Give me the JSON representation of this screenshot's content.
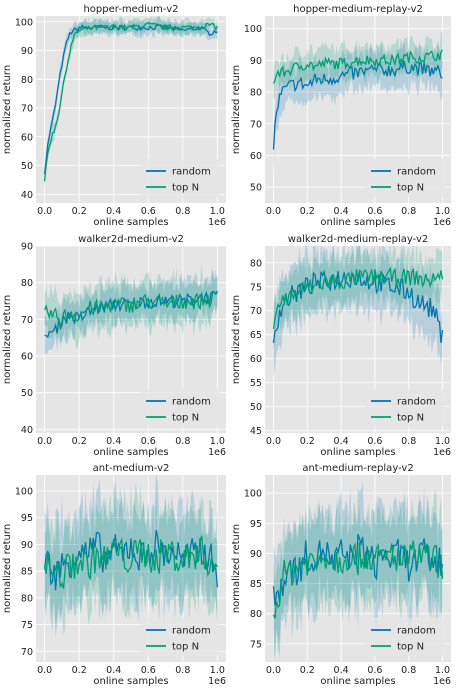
{
  "colors": {
    "random": "#0072B2",
    "topn": "#009E73",
    "panel_bg": "#E5E5E5",
    "grid": "#FFFFFF"
  },
  "chart_data": [
    {
      "type": "line",
      "title": "hopper-medium-v2",
      "xlabel": "online samples",
      "ylabel": "normalized return",
      "x_offset_label": "1e6",
      "xlim": [
        -0.05,
        1.05
      ],
      "ylim": [
        37,
        102
      ],
      "xticks": [
        0.0,
        0.2,
        0.4,
        0.6,
        0.8,
        1.0
      ],
      "xtick_labels": [
        "0.0",
        "0.2",
        "0.4",
        "0.6",
        "0.8",
        "1.0"
      ],
      "yticks": [
        40,
        50,
        60,
        70,
        80,
        90,
        100
      ],
      "ytick_labels": [
        "40",
        "50",
        "60",
        "70",
        "80",
        "90",
        "100"
      ],
      "grid": true,
      "legend_position": "lower right",
      "series": [
        {
          "name": "random",
          "x": [
            0,
            0.02,
            0.04,
            0.06,
            0.08,
            0.1,
            0.12,
            0.14,
            0.16,
            0.18,
            0.2,
            0.3,
            0.4,
            0.5,
            0.6,
            0.7,
            0.8,
            0.9,
            0.95,
            1.0
          ],
          "y": [
            48,
            58,
            64,
            70,
            78,
            85,
            91,
            95,
            97,
            97,
            98,
            98,
            98,
            98,
            98,
            98,
            97,
            98,
            96,
            97
          ],
          "band": 2
        },
        {
          "name": "top N",
          "x": [
            0,
            0.02,
            0.04,
            0.06,
            0.08,
            0.1,
            0.12,
            0.14,
            0.16,
            0.18,
            0.2,
            0.3,
            0.4,
            0.5,
            0.6,
            0.7,
            0.8,
            0.9,
            0.95,
            1.0
          ],
          "y": [
            45,
            55,
            60,
            63,
            68,
            75,
            82,
            88,
            93,
            96,
            97,
            98,
            98,
            98,
            99,
            98,
            98,
            98,
            99,
            98
          ],
          "band": 2
        }
      ]
    },
    {
      "type": "line",
      "title": "hopper-medium-replay-v2",
      "xlabel": "online samples",
      "ylabel": "normalized return",
      "x_offset_label": "1e6",
      "xlim": [
        -0.05,
        1.05
      ],
      "ylim": [
        45,
        104
      ],
      "xticks": [
        0.0,
        0.2,
        0.4,
        0.6,
        0.8,
        1.0
      ],
      "xtick_labels": [
        "0.0",
        "0.2",
        "0.4",
        "0.6",
        "0.8",
        "1.0"
      ],
      "yticks": [
        50,
        60,
        70,
        80,
        90,
        100
      ],
      "ytick_labels": [
        "50",
        "60",
        "70",
        "80",
        "90",
        "100"
      ],
      "grid": true,
      "legend_position": "lower right",
      "series": [
        {
          "name": "random",
          "x": [
            0,
            0.02,
            0.05,
            0.1,
            0.15,
            0.2,
            0.25,
            0.3,
            0.4,
            0.5,
            0.6,
            0.7,
            0.8,
            0.9,
            1.0
          ],
          "y": [
            63,
            75,
            80,
            82,
            83,
            82,
            84,
            84,
            85,
            86,
            87,
            87,
            88,
            87,
            86
          ],
          "band": 5
        },
        {
          "name": "top N",
          "x": [
            0,
            0.02,
            0.05,
            0.1,
            0.15,
            0.2,
            0.25,
            0.3,
            0.4,
            0.5,
            0.6,
            0.7,
            0.8,
            0.9,
            1.0
          ],
          "y": [
            82,
            86,
            86,
            87,
            88,
            89,
            88,
            89,
            89,
            90,
            90,
            90,
            91,
            91,
            92
          ],
          "band": 4
        }
      ]
    },
    {
      "type": "line",
      "title": "walker2d-medium-v2",
      "xlabel": "online samples",
      "ylabel": "normalized return",
      "x_offset_label": "1e6",
      "xlim": [
        -0.05,
        1.05
      ],
      "ylim": [
        39,
        90
      ],
      "xticks": [
        0.0,
        0.2,
        0.4,
        0.6,
        0.8,
        1.0
      ],
      "xtick_labels": [
        "0.0",
        "0.2",
        "0.4",
        "0.6",
        "0.8",
        "1.0"
      ],
      "yticks": [
        40,
        50,
        60,
        70,
        80,
        90
      ],
      "ytick_labels": [
        "40",
        "50",
        "60",
        "70",
        "80",
        "90"
      ],
      "grid": true,
      "legend_position": "lower right",
      "series": [
        {
          "name": "random",
          "x": [
            0,
            0.02,
            0.05,
            0.1,
            0.15,
            0.2,
            0.25,
            0.3,
            0.4,
            0.5,
            0.6,
            0.7,
            0.8,
            0.9,
            1.0
          ],
          "y": [
            64,
            67,
            66,
            70,
            71,
            70,
            72,
            73,
            74,
            74,
            75,
            75,
            75,
            76,
            76
          ],
          "band": 4
        },
        {
          "name": "top N",
          "x": [
            0,
            0.02,
            0.05,
            0.1,
            0.15,
            0.2,
            0.25,
            0.3,
            0.4,
            0.5,
            0.6,
            0.7,
            0.8,
            0.9,
            1.0
          ],
          "y": [
            71,
            72,
            71,
            70,
            72,
            71,
            73,
            73,
            74,
            74,
            75,
            74,
            75,
            75,
            76
          ],
          "band": 5
        }
      ]
    },
    {
      "type": "line",
      "title": "walker2d-medium-replay-v2",
      "xlabel": "online samples",
      "ylabel": "normalized return",
      "x_offset_label": "1e6",
      "xlim": [
        -0.05,
        1.05
      ],
      "ylim": [
        44.5,
        83.5
      ],
      "xticks": [
        0.0,
        0.2,
        0.4,
        0.6,
        0.8,
        1.0
      ],
      "xtick_labels": [
        "0.0",
        "0.2",
        "0.4",
        "0.6",
        "0.8",
        "1.0"
      ],
      "yticks": [
        45,
        50,
        55,
        60,
        65,
        70,
        75,
        80
      ],
      "ytick_labels": [
        "45",
        "50",
        "55",
        "60",
        "65",
        "70",
        "75",
        "80"
      ],
      "grid": true,
      "legend_position": "lower right",
      "series": [
        {
          "name": "random",
          "x": [
            0,
            0.02,
            0.05,
            0.1,
            0.15,
            0.2,
            0.25,
            0.3,
            0.4,
            0.5,
            0.6,
            0.7,
            0.8,
            0.85,
            0.9,
            0.95,
            1.0
          ],
          "y": [
            64,
            68,
            71,
            73,
            74,
            75,
            76,
            76,
            77,
            77,
            76,
            75,
            74,
            72,
            71,
            70,
            64
          ],
          "band": 5
        },
        {
          "name": "top N",
          "x": [
            0,
            0.02,
            0.05,
            0.1,
            0.15,
            0.2,
            0.25,
            0.3,
            0.4,
            0.5,
            0.6,
            0.7,
            0.8,
            0.85,
            0.9,
            0.95,
            1.0
          ],
          "y": [
            68,
            71,
            72,
            73,
            74,
            75,
            75,
            76,
            76,
            77,
            77,
            77,
            77,
            77,
            76,
            77,
            77
          ],
          "band": 4
        }
      ]
    },
    {
      "type": "line",
      "title": "ant-medium-v2",
      "xlabel": "online samples",
      "ylabel": "normalized return",
      "x_offset_label": "1e6",
      "xlim": [
        -0.05,
        1.05
      ],
      "ylim": [
        68,
        103
      ],
      "xticks": [
        0.0,
        0.2,
        0.4,
        0.6,
        0.8,
        1.0
      ],
      "xtick_labels": [
        "0.0",
        "0.2",
        "0.4",
        "0.6",
        "0.8",
        "1.0"
      ],
      "yticks": [
        70,
        75,
        80,
        85,
        90,
        95,
        100
      ],
      "ytick_labels": [
        "70",
        "75",
        "80",
        "85",
        "90",
        "95",
        "100"
      ],
      "grid": true,
      "legend_position": "lower right",
      "series": [
        {
          "name": "random",
          "x": [
            0,
            0.05,
            0.1,
            0.15,
            0.2,
            0.25,
            0.3,
            0.35,
            0.4,
            0.45,
            0.5,
            0.55,
            0.6,
            0.65,
            0.7,
            0.75,
            0.8,
            0.85,
            0.9,
            0.95,
            1.0
          ],
          "y": [
            88,
            84,
            86,
            87,
            89,
            88,
            90,
            87,
            89,
            88,
            90,
            87,
            89,
            90,
            88,
            89,
            87,
            88,
            89,
            88,
            85
          ],
          "band": 7
        },
        {
          "name": "top N",
          "x": [
            0,
            0.05,
            0.1,
            0.15,
            0.2,
            0.25,
            0.3,
            0.35,
            0.4,
            0.45,
            0.5,
            0.55,
            0.6,
            0.65,
            0.7,
            0.75,
            0.8,
            0.85,
            0.9,
            0.95,
            1.0
          ],
          "y": [
            86,
            85,
            84,
            86,
            87,
            86,
            88,
            87,
            89,
            88,
            87,
            89,
            88,
            87,
            89,
            88,
            87,
            88,
            89,
            87,
            86
          ],
          "band": 7
        }
      ]
    },
    {
      "type": "line",
      "title": "ant-medium-replay-v2",
      "xlabel": "online samples",
      "ylabel": "normalized return",
      "x_offset_label": "1e6",
      "xlim": [
        -0.05,
        1.05
      ],
      "ylim": [
        72,
        103
      ],
      "xticks": [
        0.0,
        0.2,
        0.4,
        0.6,
        0.8,
        1.0
      ],
      "xtick_labels": [
        "0.0",
        "0.2",
        "0.4",
        "0.6",
        "0.8",
        "1.0"
      ],
      "yticks": [
        75,
        80,
        85,
        90,
        95,
        100
      ],
      "ytick_labels": [
        "75",
        "80",
        "85",
        "90",
        "95",
        "100"
      ],
      "grid": true,
      "legend_position": "lower right",
      "series": [
        {
          "name": "random",
          "x": [
            0,
            0.05,
            0.1,
            0.15,
            0.2,
            0.25,
            0.3,
            0.35,
            0.4,
            0.45,
            0.5,
            0.55,
            0.6,
            0.65,
            0.7,
            0.75,
            0.8,
            0.85,
            0.9,
            0.95,
            1.0
          ],
          "y": [
            82,
            85,
            88,
            87,
            90,
            89,
            91,
            88,
            90,
            89,
            91,
            90,
            88,
            90,
            89,
            90,
            88,
            89,
            90,
            88,
            89
          ],
          "band": 6
        },
        {
          "name": "top N",
          "x": [
            0,
            0.05,
            0.1,
            0.15,
            0.2,
            0.25,
            0.3,
            0.35,
            0.4,
            0.45,
            0.5,
            0.55,
            0.6,
            0.65,
            0.7,
            0.75,
            0.8,
            0.85,
            0.9,
            0.95,
            1.0
          ],
          "y": [
            79,
            86,
            87,
            88,
            89,
            88,
            90,
            89,
            89,
            90,
            89,
            90,
            89,
            89,
            90,
            89,
            89,
            90,
            89,
            89,
            88
          ],
          "band": 6
        }
      ]
    }
  ]
}
